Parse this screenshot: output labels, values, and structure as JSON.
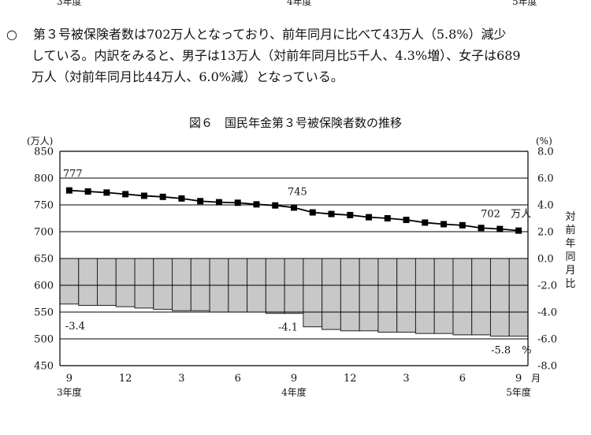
{
  "top_cut_labels": [
    "3年度",
    "4年度",
    "5年度"
  ],
  "paragraph": {
    "bullet": "○",
    "lines": [
      "第３号被保険者数は702万人となっており、前年同月に比べて43万人（5.8%）減少",
      "している。内訳をみると、男子は13万人（対前年同月比5千人、4.3%増）、女子は689",
      "万人（対前年同月比44万人、6.0%減）となっている。"
    ]
  },
  "chart_data": {
    "type": "bar+line",
    "title": "図６　国民年金第３号被保険者数の推移",
    "left_unit": "(万人)",
    "right_unit": "(%)",
    "right_axis_label": "対前年同月比",
    "left_axis": {
      "range": [
        450,
        850
      ],
      "ticks": [
        "850",
        "800",
        "750",
        "700",
        "650",
        "600",
        "550",
        "500",
        "450"
      ]
    },
    "right_axis": {
      "range": [
        -8.0,
        8.0
      ],
      "ticks": [
        "8.0",
        "6.0",
        "4.0",
        "2.0",
        "0.0",
        "-2.0",
        "-4.0",
        "-6.0",
        "-8.0"
      ]
    },
    "x_tick_labels": [
      "9",
      "12",
      "3",
      "6",
      "9",
      "12",
      "3",
      "6",
      "9"
    ],
    "x_month_unit": "月",
    "x_year_labels": [
      "3年度",
      "4年度",
      "5年度"
    ],
    "line_series": {
      "values": [
        777,
        775,
        773,
        770,
        767,
        765,
        762,
        757,
        755,
        754,
        751,
        749,
        745,
        736,
        733,
        731,
        727,
        725,
        722,
        717,
        714,
        712,
        707,
        705,
        702
      ]
    },
    "bar_series": {
      "values": [
        -3.4,
        -3.5,
        -3.5,
        -3.6,
        -3.7,
        -3.8,
        -3.9,
        -3.9,
        -4.0,
        -4.0,
        -4.0,
        -4.1,
        -4.1,
        -5.1,
        -5.3,
        -5.4,
        -5.4,
        -5.5,
        -5.5,
        -5.6,
        -5.6,
        -5.7,
        -5.7,
        -5.8,
        -5.8
      ]
    },
    "annotations": {
      "first_value": "777",
      "mid_value": "745",
      "last_value": "702",
      "last_unit": "万人",
      "first_rate": "-3.4",
      "mid_rate": "-4.1",
      "last_rate": "-5.8",
      "last_rate_unit": "%"
    },
    "colors": {
      "bar_fill": "#c8c8c8",
      "bar_stroke": "#222222",
      "line": "#000000"
    }
  }
}
